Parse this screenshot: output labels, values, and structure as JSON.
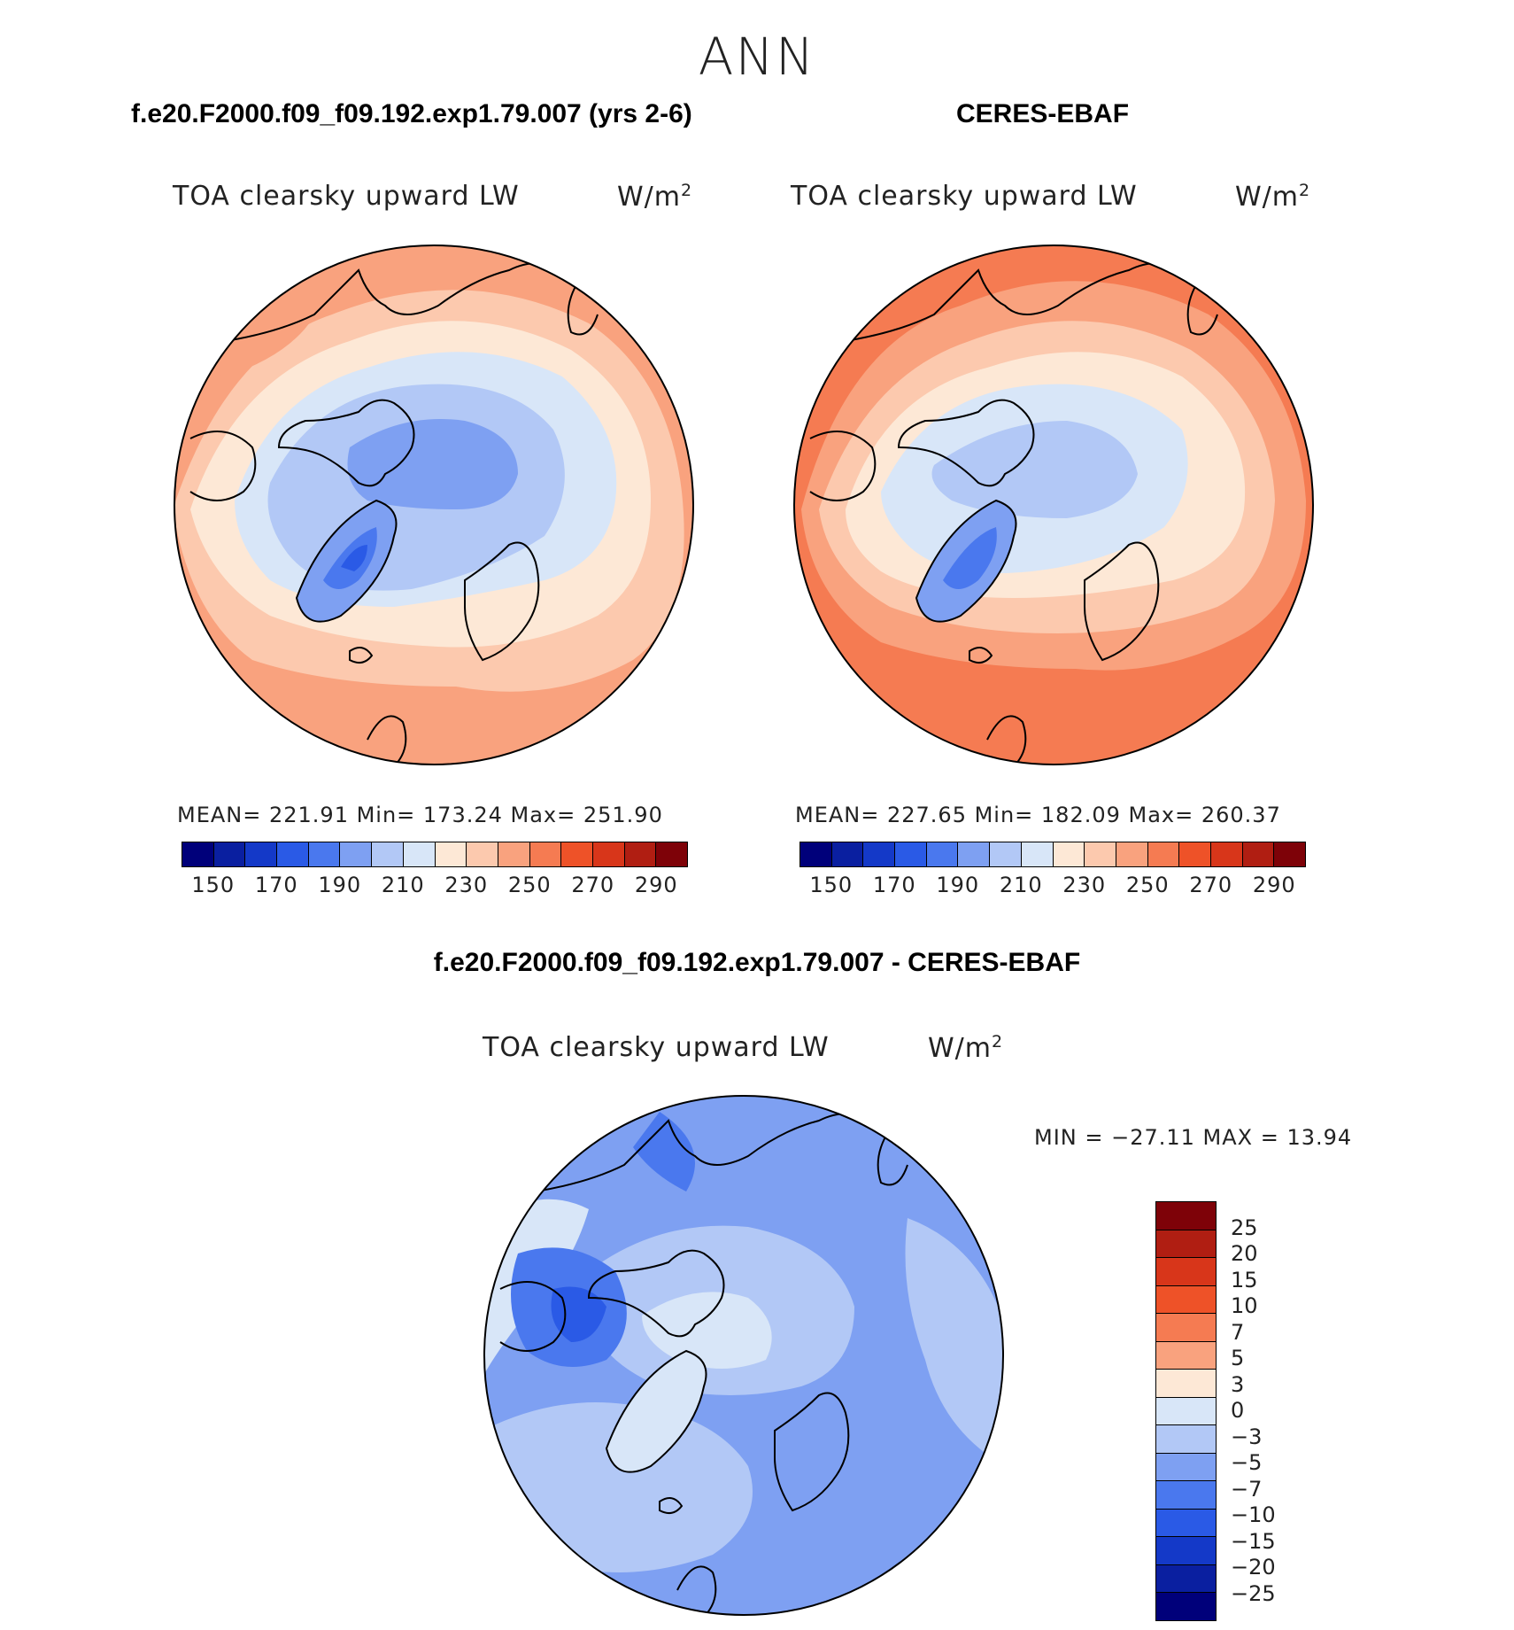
{
  "title": "ANN",
  "panels": [
    {
      "title": "f.e20.F2000.f09_f09.192.exp1.79.007 (yrs 2-6)",
      "variable": "TOA clearsky upward LW",
      "units": "W/m",
      "units_exp": "2",
      "stats": "MEAN= 221.91   Min= 173.24   Max= 251.90",
      "mean": 221.91,
      "min": 173.24,
      "max": 251.9
    },
    {
      "title": "CERES-EBAF",
      "variable": "TOA clearsky upward LW",
      "units": "W/m",
      "units_exp": "2",
      "stats": "MEAN= 227.65   Min= 182.09   Max= 260.37",
      "mean": 227.65,
      "min": 182.09,
      "max": 260.37
    }
  ],
  "diff": {
    "title": "f.e20.F2000.f09_f09.192.exp1.79.007 - CERES-EBAF",
    "variable": "TOA clearsky upward LW",
    "units": "W/m",
    "units_exp": "2",
    "stats": "MIN = −27.11 MAX =   13.94",
    "min": -27.11,
    "max": 13.94
  },
  "colorbar_main": {
    "colors": [
      "#00007a",
      "#0a1fa0",
      "#1439c8",
      "#2a5ae6",
      "#4a78ee",
      "#7ea0f2",
      "#b2c8f6",
      "#d8e6f8",
      "#fde8d6",
      "#fcc9ae",
      "#f9a27e",
      "#f57b52",
      "#ee5228",
      "#d8361a",
      "#b01e12",
      "#7e0208"
    ],
    "tick_labels": [
      "150",
      "170",
      "190",
      "210",
      "230",
      "250",
      "270",
      "290"
    ]
  },
  "colorbar_diff": {
    "colors": [
      "#7e0208",
      "#b01e12",
      "#d8361a",
      "#ee5228",
      "#f57b52",
      "#f9a27e",
      "#fde8d6",
      "#d8e6f8",
      "#b2c8f6",
      "#7ea0f2",
      "#4a78ee",
      "#2a5ae6",
      "#1439c8",
      "#0a1fa0",
      "#00007a"
    ],
    "tick_labels": [
      "25",
      "20",
      "15",
      "10",
      "7",
      "5",
      "3",
      "0",
      "−3",
      "−5",
      "−7",
      "−10",
      "−15",
      "−20",
      "−25"
    ]
  },
  "map_colors": {
    "m_outer": "#f9a27e",
    "m_ring1": "#fcc9ae",
    "m_ring2": "#fde8d6",
    "m_ring3": "#d8e6f8",
    "m_ring4": "#b2c8f6",
    "m_core": "#7ea0f2",
    "m_green": "#4a78ee",
    "m_green2": "#2a5ae6",
    "o_outer": "#f57b52",
    "o_ring1": "#f9a27e",
    "o_ring2": "#fcc9ae",
    "o_ring3": "#fde8d6",
    "o_ring4": "#d8e6f8",
    "o_core": "#b2c8f6",
    "o_green": "#7ea0f2",
    "o_green2": "#4a78ee",
    "d_base": "#7ea0f2",
    "d_light": "#b2c8f6",
    "d_pale": "#d8e6f8",
    "d_dark": "#4a78ee",
    "d_darker": "#2a5ae6"
  }
}
